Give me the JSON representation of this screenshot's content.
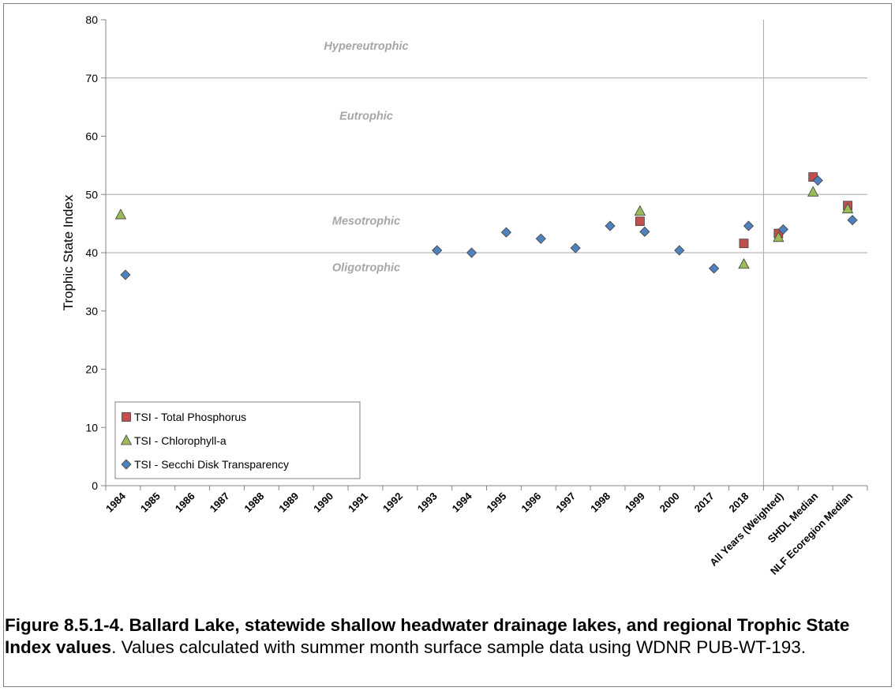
{
  "chart_data": {
    "type": "scatter",
    "ylabel": "Trophic State Index",
    "xlabel": "",
    "ylim": [
      0,
      80
    ],
    "yticks": [
      0,
      10,
      20,
      30,
      40,
      50,
      60,
      70,
      80
    ],
    "categories": [
      "1984",
      "1985",
      "1986",
      "1987",
      "1988",
      "1989",
      "1990",
      "1991",
      "1992",
      "1993",
      "1994",
      "1995",
      "1996",
      "1997",
      "1998",
      "1999",
      "2000",
      "2017",
      "2018",
      "All Years (Weighted)",
      "SHDL Median",
      "NLF Ecoregion Median"
    ],
    "zones": [
      {
        "label": "Hypereutrophic",
        "y": 75.5
      },
      {
        "label": "Eutrophic",
        "y": 63.5
      },
      {
        "label": "Mesotrophic",
        "y": 45.5
      },
      {
        "label": "Oligotrophic",
        "y": 37.5
      }
    ],
    "zone_lines": [
      40,
      50,
      70
    ],
    "divider_after": "2018",
    "grid": false,
    "legend": "bottom-left",
    "series": [
      {
        "name": "TSI - Total Phosphorus",
        "marker": "square",
        "color": "#c0504d",
        "values": [
          null,
          null,
          null,
          null,
          null,
          null,
          null,
          null,
          null,
          null,
          null,
          null,
          null,
          null,
          null,
          45.4,
          null,
          null,
          41.6,
          43.3,
          53.0,
          48.1
        ]
      },
      {
        "name": "TSI - Chlorophyll-a",
        "marker": "triangle",
        "color": "#9bbb59",
        "values": [
          46.5,
          null,
          null,
          null,
          null,
          null,
          null,
          null,
          null,
          null,
          null,
          null,
          null,
          null,
          null,
          47.1,
          null,
          null,
          38.0,
          42.6,
          50.4,
          47.5
        ]
      },
      {
        "name": "TSI - Secchi Disk Transparency",
        "marker": "diamond",
        "color": "#4f81bd",
        "values": [
          36.2,
          null,
          null,
          null,
          null,
          null,
          null,
          null,
          null,
          40.4,
          40.0,
          43.5,
          42.4,
          40.8,
          44.6,
          43.6,
          40.4,
          37.3,
          44.6,
          44.0,
          52.4,
          45.6
        ]
      }
    ]
  },
  "caption": {
    "bold": "Figure 8.5.1-4. Ballard Lake, statewide shallow headwater drainage lakes, and regional Trophic State Index values",
    "normal": ". Values calculated with summer month surface sample data using WDNR PUB-WT-193."
  }
}
